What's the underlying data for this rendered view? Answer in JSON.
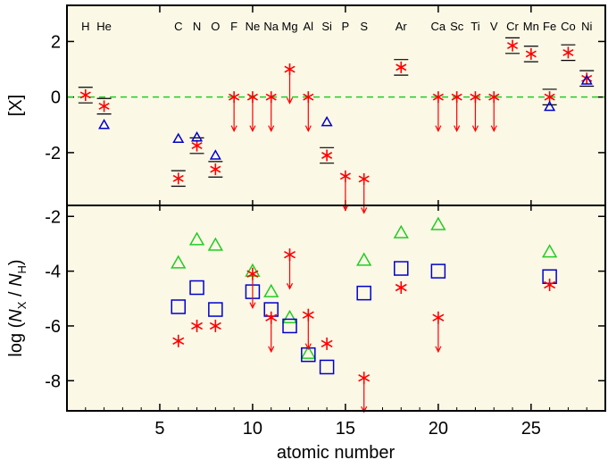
{
  "chart_data": [
    {
      "panel": "top",
      "type": "scatter",
      "ylabel": "[X]",
      "xlim": [
        0,
        29
      ],
      "ylim": [
        -3.9,
        3.3
      ],
      "yticks": [
        -2,
        0,
        2
      ],
      "ytick_labels": [
        "-2",
        "0",
        "2"
      ],
      "reference_line": {
        "y": 0,
        "style": "dashed",
        "color": "#22cc22"
      },
      "element_labels": [
        {
          "x": 1,
          "label": "H"
        },
        {
          "x": 2,
          "label": "He"
        },
        {
          "x": 6,
          "label": "C"
        },
        {
          "x": 7,
          "label": "N"
        },
        {
          "x": 8,
          "label": "O"
        },
        {
          "x": 9,
          "label": "F"
        },
        {
          "x": 10,
          "label": "Ne"
        },
        {
          "x": 11,
          "label": "Na"
        },
        {
          "x": 12,
          "label": "Mg"
        },
        {
          "x": 13,
          "label": "Al"
        },
        {
          "x": 14,
          "label": "Si"
        },
        {
          "x": 15,
          "label": "P"
        },
        {
          "x": 16,
          "label": "S"
        },
        {
          "x": 18,
          "label": "Ar"
        },
        {
          "x": 20,
          "label": "Ca"
        },
        {
          "x": 21,
          "label": "Sc"
        },
        {
          "x": 22,
          "label": "Ti"
        },
        {
          "x": 23,
          "label": "V"
        },
        {
          "x": 24,
          "label": "Cr"
        },
        {
          "x": 25,
          "label": "Mn"
        },
        {
          "x": 26,
          "label": "Fe"
        },
        {
          "x": 27,
          "label": "Co"
        },
        {
          "x": 28,
          "label": "Ni"
        }
      ],
      "series": [
        {
          "marker": "asterisk",
          "color": "#ff0000",
          "points": [
            {
              "x": 1,
              "y": 0.07,
              "err": 0.28
            },
            {
              "x": 2,
              "y": -0.33,
              "err": 0.28
            },
            {
              "x": 6,
              "y": -2.93,
              "err": 0.28
            },
            {
              "x": 7,
              "y": -1.75,
              "err": 0.28
            },
            {
              "x": 8,
              "y": -2.6,
              "err": 0.28
            },
            {
              "x": 9,
              "y": 0.0,
              "upper_limit": true
            },
            {
              "x": 10,
              "y": 0.0,
              "upper_limit": true
            },
            {
              "x": 11,
              "y": 0.0,
              "upper_limit": true
            },
            {
              "x": 12,
              "y": 1.0,
              "upper_limit": true
            },
            {
              "x": 13,
              "y": 0.0,
              "upper_limit": true
            },
            {
              "x": 14,
              "y": -2.1,
              "err": 0.28
            },
            {
              "x": 15,
              "y": -2.85,
              "upper_limit": true
            },
            {
              "x": 16,
              "y": -2.95,
              "upper_limit": true
            },
            {
              "x": 18,
              "y": 1.07,
              "err": 0.28
            },
            {
              "x": 20,
              "y": 0.0,
              "upper_limit": true
            },
            {
              "x": 21,
              "y": 0.0,
              "upper_limit": true
            },
            {
              "x": 22,
              "y": 0.0,
              "upper_limit": true
            },
            {
              "x": 23,
              "y": 0.0,
              "upper_limit": true
            },
            {
              "x": 24,
              "y": 1.85,
              "err": 0.28
            },
            {
              "x": 25,
              "y": 1.55,
              "err": 0.28
            },
            {
              "x": 26,
              "y": 0.0,
              "err": 0.28
            },
            {
              "x": 27,
              "y": 1.6,
              "err": 0.28
            },
            {
              "x": 28,
              "y": 0.67,
              "err": 0.28
            }
          ]
        },
        {
          "marker": "triangle",
          "color": "#0000cc",
          "points": [
            {
              "x": 2,
              "y": -1.0
            },
            {
              "x": 6,
              "y": -1.5
            },
            {
              "x": 7,
              "y": -1.45
            },
            {
              "x": 8,
              "y": -2.1
            },
            {
              "x": 14,
              "y": -0.9
            },
            {
              "x": 26,
              "y": -0.35
            },
            {
              "x": 28,
              "y": 0.6
            }
          ]
        }
      ]
    },
    {
      "panel": "bottom",
      "type": "scatter",
      "xlabel": "atomic number",
      "ylabel": "log (N_X / N_H)",
      "ylabel_parts": {
        "prefix": "log (",
        "n1": "N",
        "sub1": "X",
        "mid": " / ",
        "n2": "N",
        "sub2": "H",
        "suffix": ")"
      },
      "xlim": [
        0,
        29
      ],
      "ylim": [
        -9.1,
        -1.6
      ],
      "xticks": [
        5,
        10,
        15,
        20,
        25
      ],
      "xtick_labels": [
        "5",
        "10",
        "15",
        "20",
        "25"
      ],
      "yticks": [
        -8,
        -6,
        -4,
        -2
      ],
      "ytick_labels": [
        "-8",
        "-6",
        "-4",
        "-2"
      ],
      "series": [
        {
          "marker": "triangle",
          "color": "#22cc22",
          "points": [
            {
              "x": 6,
              "y": -3.7
            },
            {
              "x": 7,
              "y": -2.85
            },
            {
              "x": 8,
              "y": -3.05
            },
            {
              "x": 10,
              "y": -4.0
            },
            {
              "x": 11,
              "y": -4.75
            },
            {
              "x": 12,
              "y": -5.7
            },
            {
              "x": 13,
              "y": -7.0
            },
            {
              "x": 16,
              "y": -3.6
            },
            {
              "x": 18,
              "y": -2.6
            },
            {
              "x": 20,
              "y": -2.3
            },
            {
              "x": 26,
              "y": -3.3
            }
          ]
        },
        {
          "marker": "square",
          "color": "#0000cc",
          "points": [
            {
              "x": 6,
              "y": -5.3
            },
            {
              "x": 7,
              "y": -4.6
            },
            {
              "x": 8,
              "y": -5.4
            },
            {
              "x": 10,
              "y": -4.75
            },
            {
              "x": 11,
              "y": -5.4
            },
            {
              "x": 12,
              "y": -6.0
            },
            {
              "x": 13,
              "y": -7.05
            },
            {
              "x": 14,
              "y": -7.5
            },
            {
              "x": 16,
              "y": -4.8
            },
            {
              "x": 18,
              "y": -3.9
            },
            {
              "x": 20,
              "y": -4.0
            },
            {
              "x": 26,
              "y": -4.2
            }
          ]
        },
        {
          "marker": "asterisk",
          "color": "#ff0000",
          "points": [
            {
              "x": 6,
              "y": -6.55
            },
            {
              "x": 7,
              "y": -6.0
            },
            {
              "x": 8,
              "y": -6.0
            },
            {
              "x": 10,
              "y": -4.1,
              "upper_limit": true
            },
            {
              "x": 11,
              "y": -5.7,
              "upper_limit": true
            },
            {
              "x": 12,
              "y": -3.4,
              "upper_limit": true
            },
            {
              "x": 13,
              "y": -5.6,
              "upper_limit": true
            },
            {
              "x": 14,
              "y": -6.65
            },
            {
              "x": 16,
              "y": -7.9,
              "upper_limit": true
            },
            {
              "x": 18,
              "y": -4.6
            },
            {
              "x": 20,
              "y": -5.7,
              "upper_limit": true
            },
            {
              "x": 26,
              "y": -4.5
            }
          ]
        }
      ]
    }
  ],
  "colors": {
    "panel_background": "#fbf8e6",
    "axis": "#000000",
    "red": "#ff0000",
    "blue": "#0000cc",
    "green": "#22cc22"
  }
}
